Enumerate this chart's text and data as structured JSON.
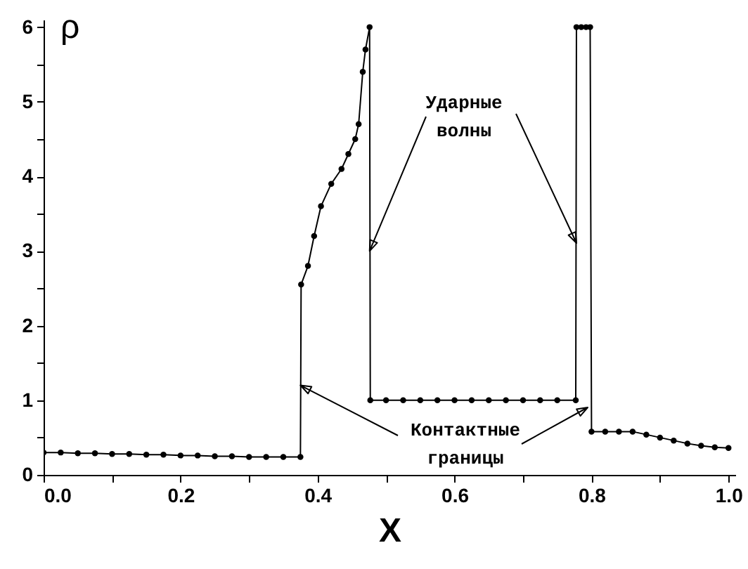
{
  "chart_data": {
    "type": "line",
    "xlabel": "X",
    "ylabel": "ρ",
    "annotations": [
      {
        "text": "Ударные\nволны",
        "x": 0.476,
        "y": 3.0
      },
      {
        "text": "Контактные\nграницы",
        "x": 0.375,
        "y": 1.2
      }
    ],
    "x": [
      0,
      0.025,
      0.05,
      0.075,
      0.1,
      0.125,
      0.15,
      0.175,
      0.2,
      0.225,
      0.25,
      0.275,
      0.3,
      0.325,
      0.35,
      0.375,
      0.376,
      0.386,
      0.395,
      0.405,
      0.42,
      0.435,
      0.445,
      0.455,
      0.46,
      0.466,
      0.47,
      0.476,
      0.477,
      0.5,
      0.525,
      0.55,
      0.575,
      0.6,
      0.625,
      0.65,
      0.675,
      0.7,
      0.725,
      0.75,
      0.777,
      0.778,
      0.785,
      0.792,
      0.798,
      0.8,
      0.82,
      0.84,
      0.86,
      0.88,
      0.9,
      0.92,
      0.94,
      0.96,
      0.98,
      1.0
    ],
    "series": [
      {
        "color": "#000000",
        "values": [
          0.3,
          0.3,
          0.29,
          0.29,
          0.28,
          0.28,
          0.27,
          0.27,
          0.26,
          0.26,
          0.25,
          0.25,
          0.24,
          0.24,
          0.24,
          0.24,
          2.55,
          2.8,
          3.2,
          3.6,
          3.9,
          4.1,
          4.3,
          4.5,
          4.7,
          5.4,
          5.7,
          6.0,
          1.0,
          1.0,
          1.0,
          1.0,
          1.0,
          1.0,
          1.0,
          1.0,
          1.0,
          1.0,
          1.0,
          1.0,
          1.0,
          6.0,
          6.0,
          6.0,
          6.0,
          0.58,
          0.58,
          0.58,
          0.58,
          0.54,
          0.5,
          0.46,
          0.42,
          0.39,
          0.37,
          0.36
        ]
      }
    ],
    "xlim": [
      0,
      1.01
    ],
    "ylim": [
      0,
      6.1
    ],
    "xticks": [
      {
        "value": 0,
        "label": "0.0"
      },
      {
        "value": 0.1,
        "label": null
      },
      {
        "value": 0.2,
        "label": "0.2"
      },
      {
        "value": 0.3,
        "label": null
      },
      {
        "value": 0.4,
        "label": "0.4"
      },
      {
        "value": 0.5,
        "label": null
      },
      {
        "value": 0.6,
        "label": "0.6"
      },
      {
        "value": 0.7,
        "label": null
      },
      {
        "value": 0.8,
        "label": "0.8"
      },
      {
        "value": 0.9,
        "label": null
      },
      {
        "value": 1.0,
        "label": "1.0"
      }
    ],
    "yticks": [
      0,
      {
        "value": 0.5,
        "label": null
      },
      1,
      {
        "value": 1.5,
        "label": null
      },
      2,
      {
        "value": 2.5,
        "label": null
      },
      3,
      {
        "value": 3.5,
        "label": null
      },
      4,
      {
        "value": 4.5,
        "label": null
      },
      5,
      {
        "value": 5.5,
        "label": null
      },
      6
    ],
    "grid": false,
    "marker": "circle",
    "line_style": "solid"
  }
}
